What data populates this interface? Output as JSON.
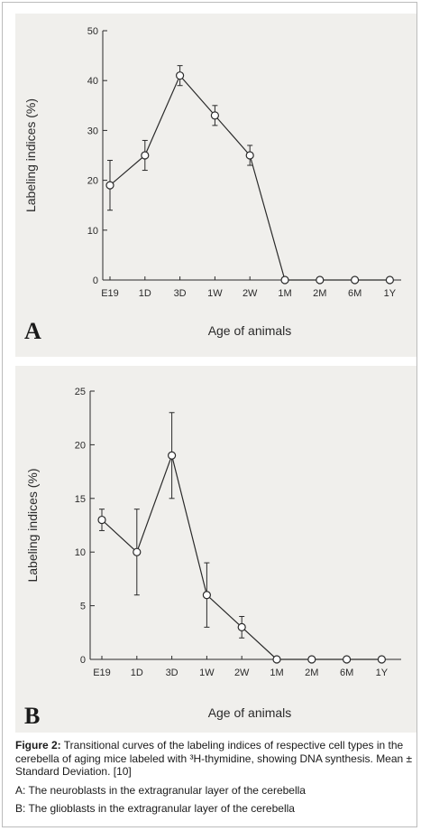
{
  "chart_data": [
    {
      "type": "line",
      "panel_label": "A",
      "xlabel": "Age of animals",
      "ylabel": "Labeling indices (%)",
      "categories": [
        "E19",
        "1D",
        "3D",
        "1W",
        "2W",
        "1M",
        "2M",
        "6M",
        "1Y"
      ],
      "yticks": [
        "0",
        "10",
        "20",
        "30",
        "40",
        "50"
      ],
      "ylim": [
        0,
        50
      ],
      "series": [
        {
          "values": [
            19,
            25,
            41,
            33,
            25,
            0,
            0,
            0,
            0
          ],
          "error": [
            5,
            3,
            2,
            2,
            2,
            0,
            0,
            0,
            0
          ]
        }
      ],
      "marker": "open-circle",
      "grid": false
    },
    {
      "type": "line",
      "panel_label": "B",
      "xlabel": "Age of animals",
      "ylabel": "Labeling indices (%)",
      "categories": [
        "E19",
        "1D",
        "3D",
        "1W",
        "2W",
        "1M",
        "2M",
        "6M",
        "1Y"
      ],
      "yticks": [
        "0",
        "5",
        "10",
        "15",
        "20",
        "25"
      ],
      "ylim": [
        0,
        25
      ],
      "series": [
        {
          "values": [
            13,
            10,
            19,
            6,
            3,
            0,
            0,
            0,
            0
          ],
          "error": [
            1,
            4,
            4,
            3,
            1,
            0,
            0,
            0,
            0
          ]
        }
      ],
      "marker": "open-circle",
      "grid": false
    }
  ],
  "caption": {
    "label": "Figure 2:",
    "text": " Transitional curves of the labeling indices of respective cell types in the cerebella of aging mice labeled with ³H-thymidine, showing DNA synthesis. Mean ± Standard Deviation. [10]",
    "note_a": "A: The neuroblasts in the extragranular layer of the cerebella",
    "note_b": "B: The glioblasts in the extragranular layer of the cerebella"
  },
  "colors": {
    "panel_bg": "#f0efec",
    "ink": "#2a2a2a"
  }
}
